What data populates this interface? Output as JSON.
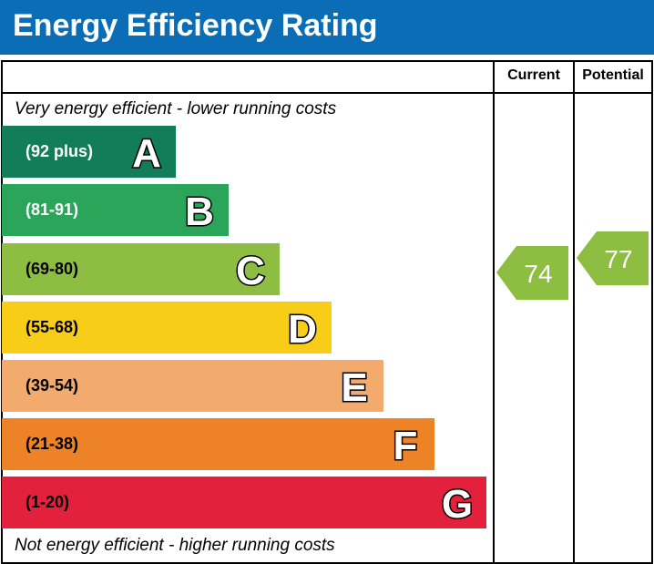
{
  "header": {
    "title": "Energy Efficiency Rating",
    "background": "#0b6db5"
  },
  "columns": {
    "current": "Current",
    "potential": "Potential"
  },
  "notes": {
    "top": "Very energy efficient - lower running costs",
    "bottom": "Not energy efficient - higher running costs"
  },
  "chart_data": {
    "type": "bar",
    "title": "Energy Efficiency Rating",
    "categories": [
      "A",
      "B",
      "C",
      "D",
      "E",
      "F",
      "G"
    ],
    "ranges": [
      "(92 plus)",
      "(81-91)",
      "(69-80)",
      "(55-68)",
      "(39-54)",
      "(21-38)",
      "(1-20)"
    ],
    "colors": [
      "#127d59",
      "#2ba55a",
      "#8ebe41",
      "#f7cd17",
      "#f2aa6d",
      "#ed8226",
      "#e3213c"
    ],
    "label_colors": [
      "#ffffff",
      "#ffffff",
      "#000000",
      "#000000",
      "#000000",
      "#000000",
      "#000000"
    ],
    "current": {
      "label": "Current",
      "value": 74,
      "band": "C",
      "color": "#8ebe41"
    },
    "potential": {
      "label": "Potential",
      "value": 77,
      "band": "C",
      "color": "#8ebe41"
    }
  }
}
